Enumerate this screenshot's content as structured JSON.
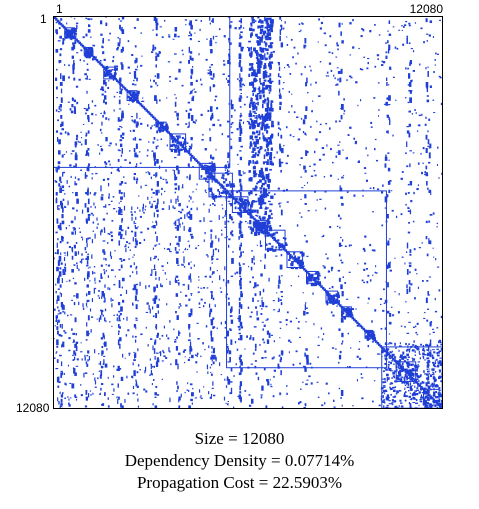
{
  "axis": {
    "start_label": "1",
    "end_label": "12080"
  },
  "colors": {
    "dot": "#1f3fd6",
    "border": "#000000",
    "cluster_outline": "#1f3fd6",
    "background": "#ffffff"
  },
  "stats": {
    "size_line": "Size = 12080",
    "density_line": "Dependency Density = 0.07714%",
    "propagation_line": "Propagation Cost = 22.5903%"
  },
  "matrix": {
    "size": 12080,
    "dependency_density_percent": 0.07714,
    "propagation_cost_percent": 22.5903
  }
}
